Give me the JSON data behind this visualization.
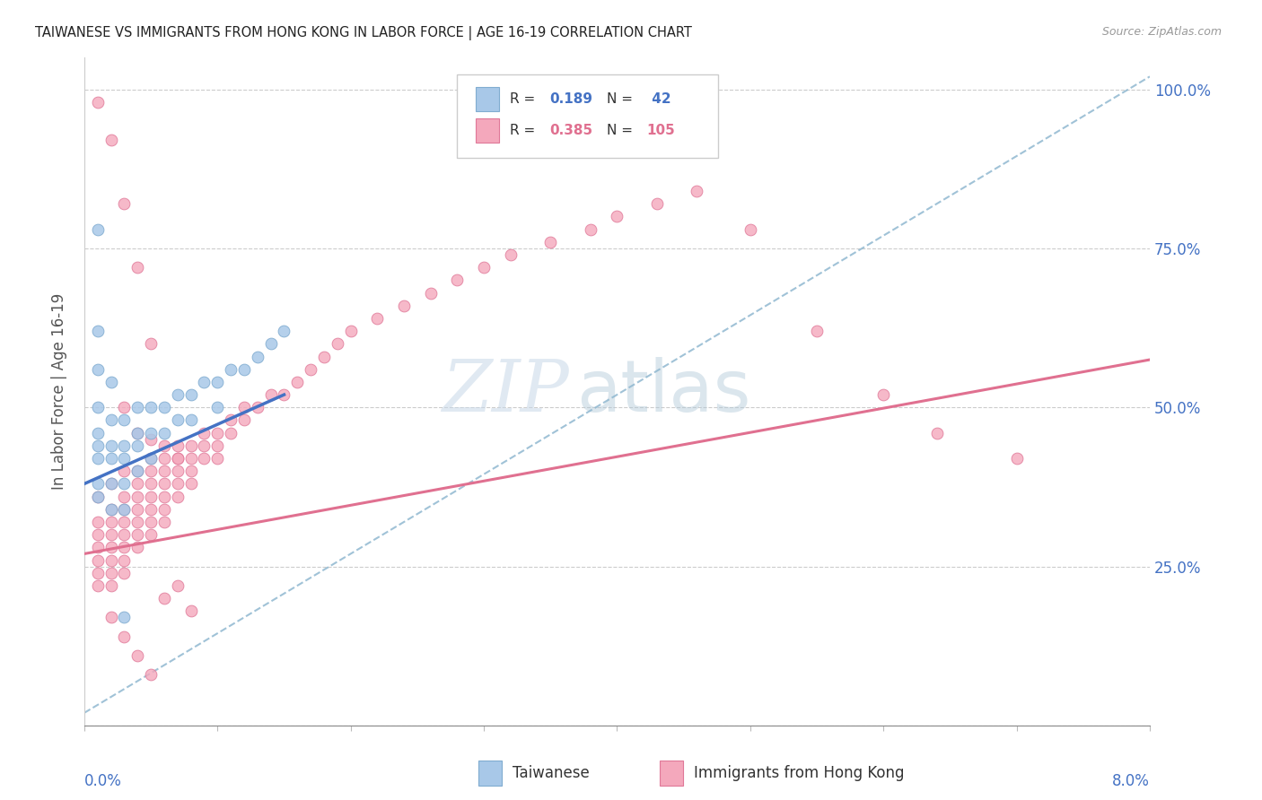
{
  "title": "TAIWANESE VS IMMIGRANTS FROM HONG KONG IN LABOR FORCE | AGE 16-19 CORRELATION CHART",
  "source": "Source: ZipAtlas.com",
  "ylabel": "In Labor Force | Age 16-19",
  "xmin": 0.0,
  "xmax": 0.08,
  "ymin": 0.0,
  "ymax": 1.05,
  "blue_scatter_color": "#a8c8e8",
  "blue_scatter_edge": "#80acd0",
  "pink_scatter_color": "#f4a8bc",
  "pink_scatter_edge": "#e07898",
  "blue_line_color": "#4472c4",
  "pink_line_color": "#e07090",
  "dashed_color": "#90b8d0",
  "right_axis_color": "#4472c4",
  "watermark_zip_color": "#c8d8e8",
  "watermark_atlas_color": "#b8ccd8",
  "tw_x": [
    0.001,
    0.001,
    0.001,
    0.001,
    0.001,
    0.001,
    0.001,
    0.001,
    0.002,
    0.002,
    0.002,
    0.002,
    0.002,
    0.002,
    0.003,
    0.003,
    0.003,
    0.003,
    0.003,
    0.004,
    0.004,
    0.004,
    0.004,
    0.005,
    0.005,
    0.005,
    0.006,
    0.006,
    0.007,
    0.007,
    0.008,
    0.008,
    0.009,
    0.01,
    0.01,
    0.011,
    0.012,
    0.013,
    0.014,
    0.015,
    0.001,
    0.003
  ],
  "tw_y": [
    0.62,
    0.56,
    0.5,
    0.46,
    0.44,
    0.42,
    0.38,
    0.36,
    0.54,
    0.48,
    0.44,
    0.42,
    0.38,
    0.34,
    0.48,
    0.44,
    0.42,
    0.38,
    0.34,
    0.5,
    0.46,
    0.44,
    0.4,
    0.5,
    0.46,
    0.42,
    0.5,
    0.46,
    0.52,
    0.48,
    0.52,
    0.48,
    0.54,
    0.54,
    0.5,
    0.56,
    0.56,
    0.58,
    0.6,
    0.62,
    0.78,
    0.17
  ],
  "hk_x": [
    0.001,
    0.001,
    0.001,
    0.001,
    0.001,
    0.001,
    0.001,
    0.002,
    0.002,
    0.002,
    0.002,
    0.002,
    0.002,
    0.002,
    0.002,
    0.003,
    0.003,
    0.003,
    0.003,
    0.003,
    0.003,
    0.003,
    0.003,
    0.004,
    0.004,
    0.004,
    0.004,
    0.004,
    0.004,
    0.004,
    0.005,
    0.005,
    0.005,
    0.005,
    0.005,
    0.005,
    0.005,
    0.006,
    0.006,
    0.006,
    0.006,
    0.006,
    0.006,
    0.007,
    0.007,
    0.007,
    0.007,
    0.007,
    0.008,
    0.008,
    0.008,
    0.008,
    0.009,
    0.009,
    0.009,
    0.01,
    0.01,
    0.01,
    0.011,
    0.011,
    0.012,
    0.012,
    0.013,
    0.014,
    0.015,
    0.016,
    0.017,
    0.018,
    0.019,
    0.02,
    0.022,
    0.024,
    0.026,
    0.028,
    0.03,
    0.032,
    0.035,
    0.038,
    0.04,
    0.043,
    0.046,
    0.05,
    0.055,
    0.06,
    0.064,
    0.07,
    0.001,
    0.002,
    0.003,
    0.004,
    0.005,
    0.002,
    0.003,
    0.004,
    0.005,
    0.006,
    0.007,
    0.008,
    0.003,
    0.004,
    0.005,
    0.006,
    0.007
  ],
  "hk_y": [
    0.36,
    0.32,
    0.3,
    0.28,
    0.26,
    0.24,
    0.22,
    0.38,
    0.34,
    0.32,
    0.3,
    0.28,
    0.26,
    0.24,
    0.22,
    0.4,
    0.36,
    0.34,
    0.32,
    0.3,
    0.28,
    0.26,
    0.24,
    0.4,
    0.38,
    0.36,
    0.34,
    0.32,
    0.3,
    0.28,
    0.42,
    0.4,
    0.38,
    0.36,
    0.34,
    0.32,
    0.3,
    0.42,
    0.4,
    0.38,
    0.36,
    0.34,
    0.32,
    0.44,
    0.42,
    0.4,
    0.38,
    0.36,
    0.44,
    0.42,
    0.4,
    0.38,
    0.46,
    0.44,
    0.42,
    0.46,
    0.44,
    0.42,
    0.48,
    0.46,
    0.5,
    0.48,
    0.5,
    0.52,
    0.52,
    0.54,
    0.56,
    0.58,
    0.6,
    0.62,
    0.64,
    0.66,
    0.68,
    0.7,
    0.72,
    0.74,
    0.76,
    0.78,
    0.8,
    0.82,
    0.84,
    0.78,
    0.62,
    0.52,
    0.46,
    0.42,
    0.98,
    0.92,
    0.82,
    0.72,
    0.6,
    0.17,
    0.14,
    0.11,
    0.08,
    0.2,
    0.22,
    0.18,
    0.5,
    0.46,
    0.45,
    0.44,
    0.42
  ],
  "blue_line_x0": 0.0,
  "blue_line_x1": 0.015,
  "blue_line_y0": 0.38,
  "blue_line_y1": 0.52,
  "dashed_line_x0": 0.0,
  "dashed_line_x1": 0.08,
  "dashed_line_y0": 0.02,
  "dashed_line_y1": 1.02,
  "pink_line_x0": 0.0,
  "pink_line_x1": 0.08,
  "pink_line_y0": 0.27,
  "pink_line_y1": 0.575
}
